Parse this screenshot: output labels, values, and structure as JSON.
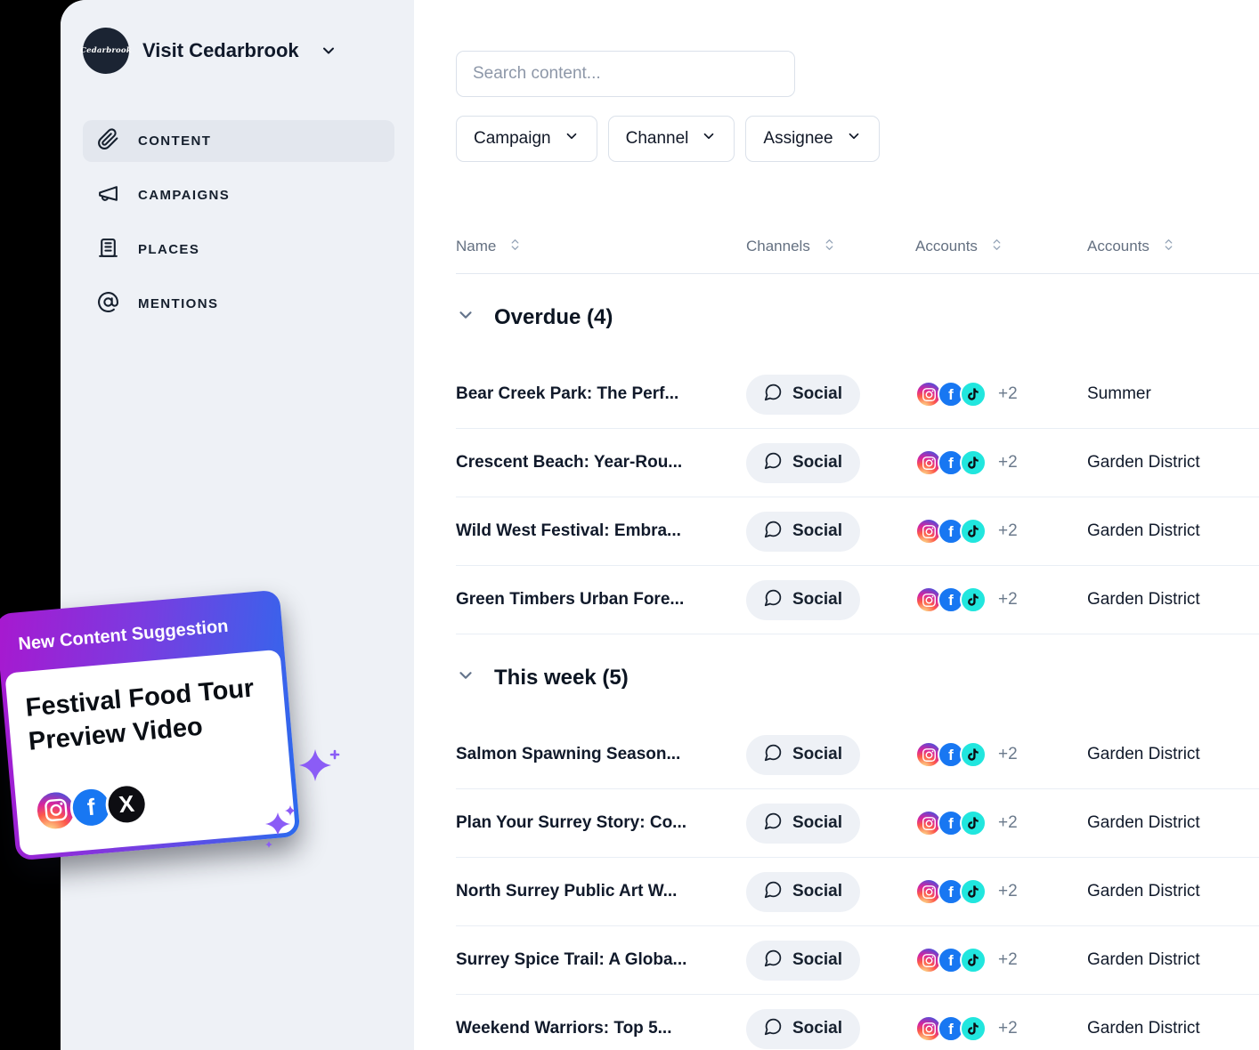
{
  "brand": {
    "name": "Visit Cedarbrook",
    "logo_text": "Cedarbrook"
  },
  "sidebar": {
    "items": [
      {
        "label": "CONTENT",
        "icon": "paperclip",
        "active": true
      },
      {
        "label": "CAMPAIGNS",
        "icon": "megaphone",
        "active": false
      },
      {
        "label": "PLACES",
        "icon": "building",
        "active": false
      },
      {
        "label": "MENTIONS",
        "icon": "at-sign",
        "active": false
      }
    ]
  },
  "search": {
    "placeholder": "Search content..."
  },
  "filters": [
    {
      "label": "Campaign"
    },
    {
      "label": "Channel"
    },
    {
      "label": "Assignee"
    }
  ],
  "table": {
    "columns": [
      "Name",
      "Channels",
      "Accounts",
      "Accounts"
    ]
  },
  "sections": [
    {
      "title": "Overdue (4)",
      "rows": [
        {
          "name": "Bear Creek Park: The Perf...",
          "channel": "Social",
          "accounts": [
            "instagram",
            "facebook",
            "tiktok"
          ],
          "more": "+2",
          "tag": "Summer"
        },
        {
          "name": "Crescent Beach: Year-Rou...",
          "channel": "Social",
          "accounts": [
            "instagram",
            "facebook",
            "tiktok"
          ],
          "more": "+2",
          "tag": "Garden District"
        },
        {
          "name": "Wild West Festival: Embra...",
          "channel": "Social",
          "accounts": [
            "instagram",
            "facebook",
            "tiktok"
          ],
          "more": "+2",
          "tag": "Garden District"
        },
        {
          "name": "Green Timbers Urban Fore...",
          "channel": "Social",
          "accounts": [
            "instagram",
            "facebook",
            "tiktok"
          ],
          "more": "+2",
          "tag": "Garden District"
        }
      ]
    },
    {
      "title": "This week (5)",
      "rows": [
        {
          "name": "Salmon Spawning Season...",
          "channel": "Social",
          "accounts": [
            "instagram",
            "facebook",
            "tiktok"
          ],
          "more": "+2",
          "tag": "Garden District"
        },
        {
          "name": "Plan Your Surrey Story: Co...",
          "channel": "Social",
          "accounts": [
            "instagram",
            "facebook",
            "tiktok"
          ],
          "more": "+2",
          "tag": "Garden District"
        },
        {
          "name": "North Surrey Public Art W...",
          "channel": "Social",
          "accounts": [
            "instagram",
            "facebook",
            "tiktok"
          ],
          "more": "+2",
          "tag": "Garden District"
        },
        {
          "name": "Surrey Spice Trail: A Globa...",
          "channel": "Social",
          "accounts": [
            "instagram",
            "facebook",
            "tiktok"
          ],
          "more": "+2",
          "tag": "Garden District"
        },
        {
          "name": "Weekend Warriors: Top 5...",
          "channel": "Social",
          "accounts": [
            "instagram",
            "facebook",
            "tiktok"
          ],
          "more": "+2",
          "tag": "Garden District"
        }
      ]
    }
  ],
  "suggestion_card": {
    "badge": "New Content Suggestion",
    "title": "Festival Food Tour Preview Video",
    "accounts": [
      "instagram",
      "facebook",
      "x"
    ]
  },
  "colors": {
    "facebook": "#1877F2",
    "tiktok_circle": "#21e6de",
    "x_circle": "#0d0d12",
    "card_gradient_start": "#a818cf",
    "card_gradient_end": "#2b6bee",
    "sparkle_purple": "#8b5cf6",
    "sidebar_bg": "#eef1f6",
    "left_strip": "#000000"
  }
}
